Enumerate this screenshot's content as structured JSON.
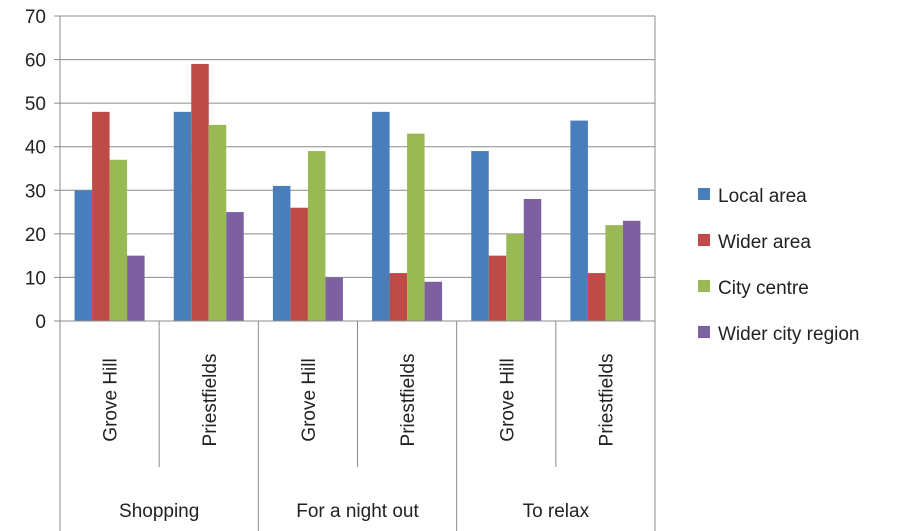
{
  "chart_data": {
    "type": "bar",
    "title": "",
    "xlabel": "",
    "ylabel": "",
    "ylim": [
      0,
      70
    ],
    "yticks": [
      0,
      10,
      20,
      30,
      40,
      50,
      60,
      70
    ],
    "grid": true,
    "legend_position": "right",
    "groups": [
      {
        "name": "Shopping",
        "categories": [
          "Grove Hill",
          "Priestfields"
        ]
      },
      {
        "name": "For a night out",
        "categories": [
          "Grove Hill",
          "Priestfields"
        ]
      },
      {
        "name": "To relax",
        "categories": [
          "Grove Hill",
          "Priestfields"
        ]
      }
    ],
    "categories": [
      "Grove Hill",
      "Priestfields",
      "Grove Hill",
      "Priestfields",
      "Grove Hill",
      "Priestfields"
    ],
    "series": [
      {
        "name": "Local area",
        "color": "#4a7ebb",
        "values": [
          30,
          48,
          31,
          48,
          39,
          46
        ]
      },
      {
        "name": "Wider area",
        "color": "#be4b48",
        "values": [
          48,
          59,
          26,
          11,
          15,
          11
        ]
      },
      {
        "name": "City centre",
        "color": "#98b954",
        "values": [
          37,
          45,
          39,
          43,
          20,
          22
        ]
      },
      {
        "name": "Wider city region",
        "color": "#7d60a0",
        "values": [
          15,
          25,
          10,
          9,
          28,
          23
        ]
      }
    ]
  }
}
